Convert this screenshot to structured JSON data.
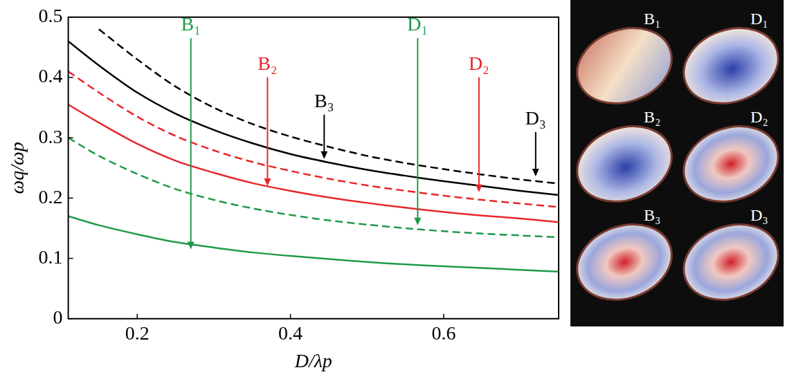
{
  "chart_data": {
    "type": "line",
    "x_label": "D/λp",
    "y_label": "ωq/ωp",
    "xlim": [
      0.11,
      0.75
    ],
    "xticks": [
      0.2,
      0.4,
      0.6
    ],
    "ylim": [
      0,
      0.5
    ],
    "yticks": [
      0,
      0.1,
      0.2,
      0.3,
      0.4,
      0.5
    ],
    "grid": false,
    "x": [
      0.11,
      0.15,
      0.2,
      0.25,
      0.3,
      0.35,
      0.4,
      0.45,
      0.5,
      0.55,
      0.6,
      0.65,
      0.7,
      0.75
    ],
    "series": [
      {
        "name": "B₁",
        "color": "#1f9a48",
        "line_style": "solid",
        "values": [
          0.17,
          0.155,
          0.14,
          0.127,
          0.118,
          0.11,
          0.104,
          0.099,
          0.094,
          0.09,
          0.087,
          0.084,
          0.081,
          0.078
        ]
      },
      {
        "name": "D₁",
        "color": "#1f9a48",
        "line_style": "dashed",
        "values": [
          0.3,
          0.27,
          0.24,
          0.215,
          0.197,
          0.183,
          0.172,
          0.163,
          0.156,
          0.15,
          0.145,
          0.141,
          0.138,
          0.135
        ]
      },
      {
        "name": "B₂",
        "color": "#e8262a",
        "line_style": "solid",
        "values": [
          0.355,
          0.325,
          0.29,
          0.262,
          0.242,
          0.225,
          0.212,
          0.201,
          0.192,
          0.184,
          0.177,
          0.171,
          0.166,
          0.16
        ]
      },
      {
        "name": "D₂",
        "color": "#e8262a",
        "line_style": "dashed",
        "values": [
          0.41,
          0.375,
          0.335,
          0.303,
          0.279,
          0.26,
          0.245,
          0.232,
          0.221,
          0.212,
          0.204,
          0.197,
          0.191,
          0.185
        ]
      },
      {
        "name": "B₃",
        "color": "#000000",
        "line_style": "solid",
        "values": [
          0.46,
          0.42,
          0.375,
          0.34,
          0.313,
          0.291,
          0.273,
          0.259,
          0.247,
          0.237,
          0.228,
          0.22,
          0.212,
          0.205
        ]
      },
      {
        "name": "D₃",
        "color": "#000000",
        "line_style": "dashed",
        "values": [
          null,
          0.48,
          0.43,
          0.385,
          0.35,
          0.323,
          0.302,
          0.285,
          0.27,
          0.258,
          0.248,
          0.239,
          0.231,
          0.224
        ]
      }
    ],
    "annotations": [
      {
        "text": "B₁",
        "x": 0.27,
        "y": 0.47,
        "arrow_to": 0.115,
        "color": "#1f9a48"
      },
      {
        "text": "B₂",
        "x": 0.37,
        "y": 0.405,
        "arrow_to": 0.22,
        "color": "#e8262a"
      },
      {
        "text": "B₃",
        "x": 0.444,
        "y": 0.343,
        "arrow_to": 0.265,
        "color": "#000000"
      },
      {
        "text": "D₁",
        "x": 0.566,
        "y": 0.47,
        "arrow_to": 0.155,
        "color": "#1f9a48"
      },
      {
        "text": "D₂",
        "x": 0.646,
        "y": 0.405,
        "arrow_to": 0.21,
        "color": "#e8262a"
      },
      {
        "text": "D₃",
        "x": 0.72,
        "y": 0.314,
        "arrow_to": 0.236,
        "color": "#000000"
      }
    ]
  },
  "images": {
    "labels": [
      "B₁",
      "D₁",
      "B₂",
      "D₂",
      "B₃",
      "D₃"
    ]
  }
}
